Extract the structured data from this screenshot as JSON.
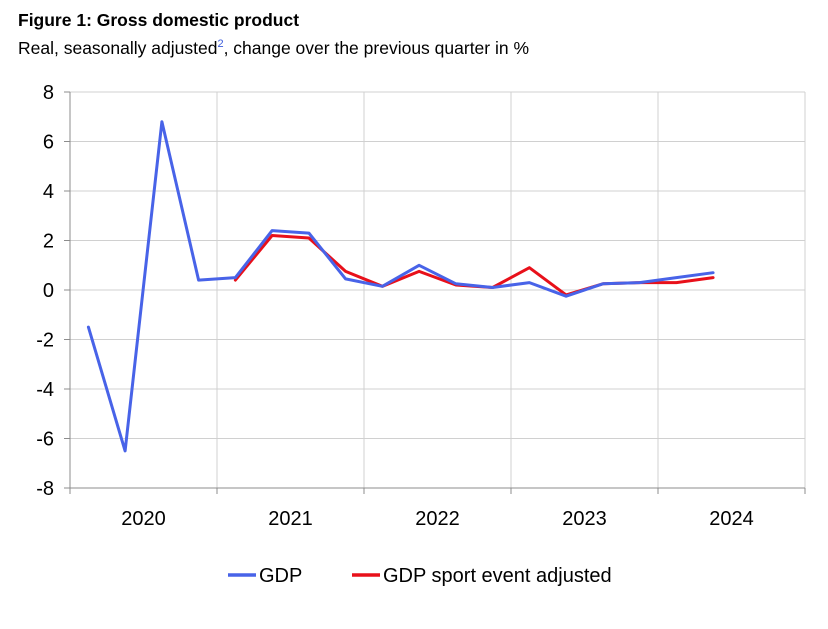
{
  "figure": {
    "title": "Figure 1:  Gross domestic product",
    "subtitle_main": "Real, seasonally adjusted",
    "subtitle_note": "2",
    "subtitle_rest": ", change over the previous quarter in %"
  },
  "chart_data": {
    "type": "line",
    "title": "Figure 1:  Gross domestic product",
    "subtitle": "Real, seasonally adjusted, change over the previous quarter in %",
    "xlabel": "",
    "ylabel": "",
    "ylim": [
      -8,
      8
    ],
    "yticks": [
      8,
      6,
      4,
      2,
      0,
      -2,
      -4,
      -6,
      -8
    ],
    "year_labels": [
      "2020",
      "2021",
      "2022",
      "2023",
      "2024"
    ],
    "quarters": [
      "2020Q1",
      "2020Q2",
      "2020Q3",
      "2020Q4",
      "2021Q1",
      "2021Q2",
      "2021Q3",
      "2021Q4",
      "2022Q1",
      "2022Q2",
      "2022Q3",
      "2022Q4",
      "2023Q1",
      "2023Q2",
      "2023Q3",
      "2023Q4",
      "2024Q1",
      "2024Q2",
      "2024Q3",
      "2024Q4"
    ],
    "grid": true,
    "legend": "bottom",
    "series": [
      {
        "name": "GDP",
        "color": "#4863e8",
        "values": [
          -1.5,
          -6.5,
          6.8,
          0.4,
          0.5,
          2.4,
          2.3,
          0.45,
          0.15,
          1.0,
          0.25,
          0.1,
          0.3,
          -0.25,
          0.25,
          0.3,
          0.5,
          0.7
        ]
      },
      {
        "name": "GDP sport event adjusted",
        "color": "#e8101a",
        "values": [
          null,
          null,
          null,
          null,
          0.4,
          2.2,
          2.1,
          0.75,
          0.15,
          0.75,
          0.2,
          0.1,
          0.9,
          -0.2,
          0.25,
          0.3,
          0.3,
          0.5
        ]
      }
    ]
  }
}
